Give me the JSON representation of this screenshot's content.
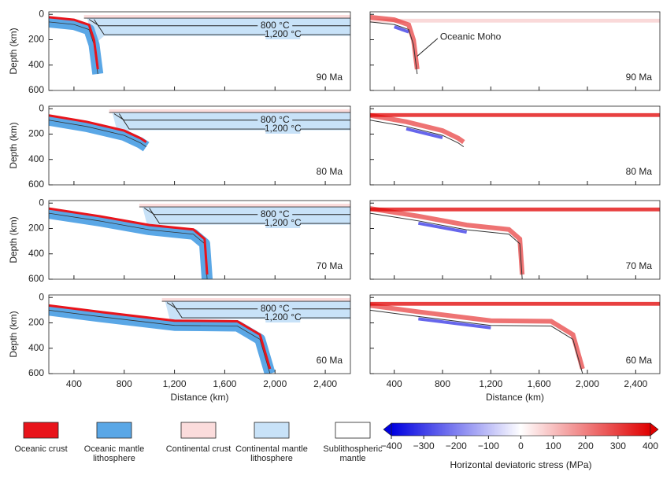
{
  "chart_data": [
    {
      "type": "composition",
      "age": "90 Ma",
      "ylabel": "Depth (km)",
      "isotherms": [
        "800 °C",
        "1,200 °C"
      ],
      "xlim": [
        200,
        2600
      ],
      "ylim": [
        -20,
        600
      ],
      "xticks": [
        400,
        800,
        1200,
        1600,
        2000,
        2400
      ],
      "yticks": [
        0,
        200,
        400,
        600
      ]
    },
    {
      "type": "stress",
      "age": "90 Ma",
      "annotation": "Oceanic Moho",
      "xlim": [
        200,
        2600
      ],
      "ylim": [
        -20,
        600
      ],
      "xticks": [
        400,
        800,
        1200,
        1600,
        2000,
        2400
      ],
      "yticks": [
        0,
        200,
        400,
        600
      ]
    },
    {
      "type": "composition",
      "age": "80 Ma",
      "ylabel": "Depth (km)",
      "isotherms": [
        "800 °C",
        "1,200 °C"
      ],
      "xlim": [
        200,
        2600
      ],
      "ylim": [
        -20,
        600
      ],
      "xticks": [
        400,
        800,
        1200,
        1600,
        2000,
        2400
      ],
      "yticks": [
        0,
        200,
        400,
        600
      ]
    },
    {
      "type": "stress",
      "age": "80 Ma",
      "xlim": [
        200,
        2600
      ],
      "ylim": [
        -20,
        600
      ],
      "xticks": [
        400,
        800,
        1200,
        1600,
        2000,
        2400
      ],
      "yticks": [
        0,
        200,
        400,
        600
      ]
    },
    {
      "type": "composition",
      "age": "70 Ma",
      "ylabel": "Depth (km)",
      "isotherms": [
        "800 °C",
        "1,200 °C"
      ],
      "xlim": [
        200,
        2600
      ],
      "ylim": [
        -20,
        600
      ],
      "xticks": [
        400,
        800,
        1200,
        1600,
        2000,
        2400
      ],
      "yticks": [
        0,
        200,
        400,
        600
      ]
    },
    {
      "type": "stress",
      "age": "70 Ma",
      "xlim": [
        200,
        2600
      ],
      "ylim": [
        -20,
        600
      ],
      "xticks": [
        400,
        800,
        1200,
        1600,
        2000,
        2400
      ],
      "yticks": [
        0,
        200,
        400,
        600
      ]
    },
    {
      "type": "composition",
      "age": "60 Ma",
      "ylabel": "Depth (km)",
      "xlabel": "Distance (km)",
      "isotherms": [
        "800 °C",
        "1,200 °C"
      ],
      "xlim": [
        200,
        2600
      ],
      "ylim": [
        -20,
        600
      ],
      "xticks": [
        400,
        800,
        {
          "value": 1200,
          "label": "1,200"
        },
        {
          "value": 1600,
          "label": "1,600"
        },
        {
          "value": 2000,
          "label": "2,000"
        },
        {
          "value": 2400,
          "label": "2,400"
        }
      ],
      "yticks": [
        0,
        200,
        400,
        600
      ]
    },
    {
      "type": "stress",
      "age": "60 Ma",
      "xlabel": "Distance (km)",
      "xlim": [
        200,
        2600
      ],
      "ylim": [
        -20,
        600
      ],
      "xticks": [
        400,
        800,
        {
          "value": 1200,
          "label": "1,200"
        },
        {
          "value": 1600,
          "label": "1,600"
        },
        {
          "value": 2000,
          "label": "2,000"
        },
        {
          "value": 2400,
          "label": "2,400"
        }
      ],
      "yticks": [
        0,
        200,
        400,
        600
      ]
    }
  ],
  "legend": [
    {
      "label": "Oceanic crust",
      "color": "#e8141b"
    },
    {
      "label": "Oceanic mantle lithosphere",
      "color": "#5aa7e6"
    },
    {
      "label": "Continental crust",
      "color": "#fbdcdc"
    },
    {
      "label": "Continental mantle lithosphere",
      "color": "#c8e2f8"
    },
    {
      "label": "Sublithospheric mantle",
      "color": "#ffffff"
    }
  ],
  "colorbar": {
    "label": "Horizontal deviatoric stress (MPa)",
    "lim": [
      -400,
      400
    ],
    "colors": [
      "#0000e0",
      "#ffffff",
      "#e00000"
    ],
    "ticks": [
      {
        "value": -400,
        "label": "−400"
      },
      {
        "value": -300,
        "label": "−300"
      },
      {
        "value": -200,
        "label": "−200"
      },
      {
        "value": -100,
        "label": "−100"
      },
      0,
      100,
      200,
      300,
      400
    ]
  }
}
